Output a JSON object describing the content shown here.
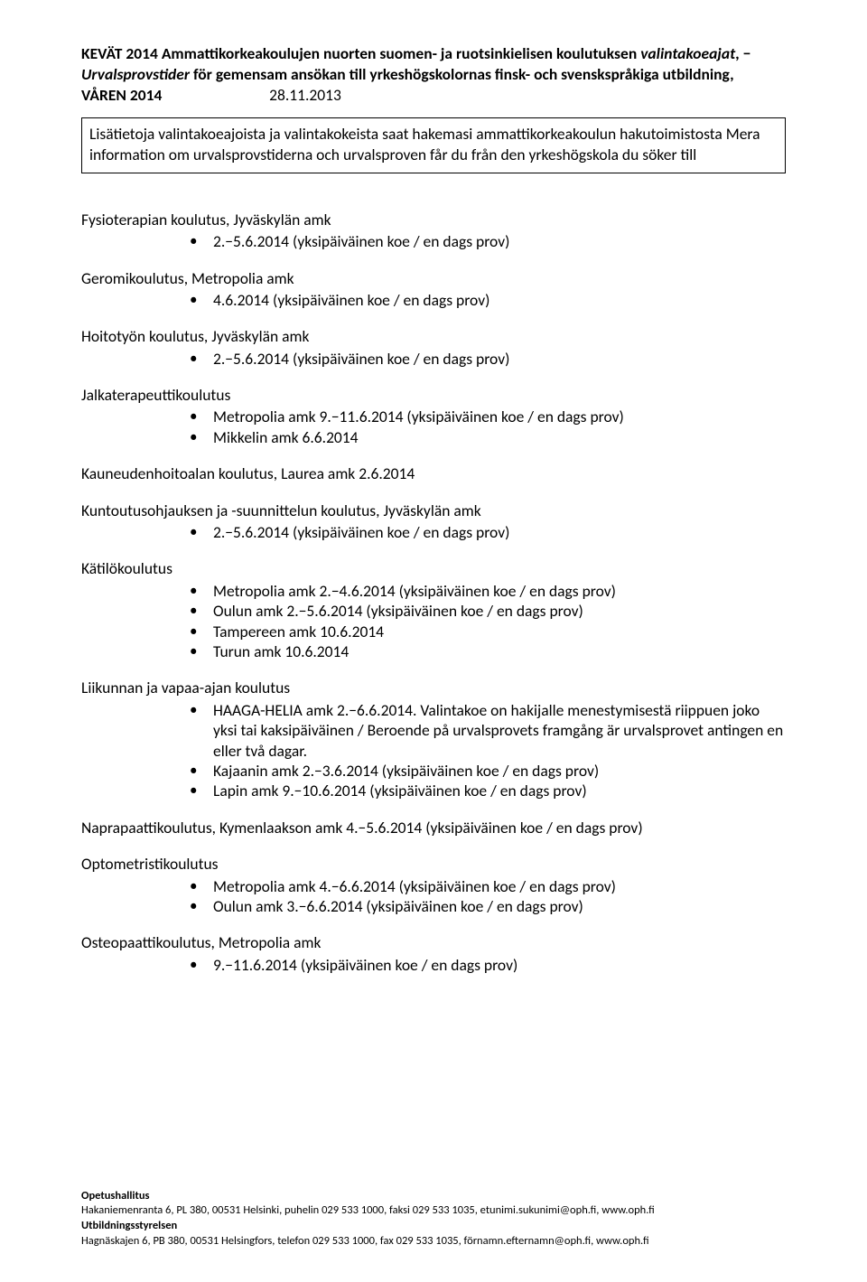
{
  "header": {
    "line1_pre": "KEVÄT 2014 Ammattikorkeakoulujen nuorten suomen- ja ruotsinkielisen koulutuksen ",
    "line1_bi": "valintakoeajat",
    "line1_post": ", −",
    "line2_bi1": "Urvalsprovstider",
    "line2_mid": " för gemensam ansökan till yrkeshögskolornas finsk- och svenskspråkiga utbildning, ",
    "line3_b": "VÅREN 2014",
    "line3_date": "28.11.2013"
  },
  "info_box": "Lisätietoja valintakoeajoista ja valintakokeista saat hakemasi ammattikorkeakoulun hakutoimistosta Mera information om urvalsprovstiderna och urvalsproven får du från den yrkeshögskola du söker till",
  "sections": [
    {
      "title": "Fysioterapian koulutus, Jyväskylän amk",
      "items": [
        "2.−5.6.2014 (yksipäiväinen koe / en dags prov)"
      ]
    },
    {
      "title": "Geromikoulutus, Metropolia amk",
      "items": [
        "4.6.2014 (yksipäiväinen koe / en dags prov)"
      ]
    },
    {
      "title": "Hoitotyön koulutus, Jyväskylän amk",
      "items": [
        "2.−5.6.2014 (yksipäiväinen koe / en dags prov)"
      ]
    },
    {
      "title": "Jalkaterapeuttikoulutus",
      "items": [
        "Metropolia amk 9.−11.6.2014 (yksipäiväinen koe / en dags prov)",
        "Mikkelin amk 6.6.2014"
      ]
    },
    {
      "oneliner": "Kauneudenhoitoalan koulutus, Laurea amk 2.6.2014"
    },
    {
      "title": "Kuntoutusohjauksen ja -suunnittelun koulutus, Jyväskylän amk",
      "items": [
        "2.−5.6.2014 (yksipäiväinen koe / en dags prov)"
      ]
    },
    {
      "title": "Kätilökoulutus",
      "items": [
        "Metropolia amk 2.−4.6.2014 (yksipäiväinen koe / en dags prov)",
        "Oulun amk 2.−5.6.2014 (yksipäiväinen koe / en dags prov)",
        "Tampereen amk 10.6.2014",
        "Turun amk 10.6.2014"
      ]
    },
    {
      "title": "Liikunnan ja vapaa-ajan koulutus",
      "items": [
        "HAAGA-HELIA amk 2.−6.6.2014. Valintakoe on hakijalle menestymisestä riippuen joko yksi tai kaksipäiväinen / Beroende på urvalsprovets framgång är urvalsprovet antingen en eller två dagar.",
        "Kajaanin amk 2.−3.6.2014 (yksipäiväinen koe / en dags prov)",
        "Lapin amk 9.−10.6.2014 (yksipäiväinen koe / en dags prov)"
      ]
    },
    {
      "oneliner": "Naprapaattikoulutus, Kymenlaakson amk 4.−5.6.2014 (yksipäiväinen koe / en dags prov)"
    },
    {
      "title": "Optometristikoulutus",
      "items": [
        "Metropolia amk 4.−6.6.2014 (yksipäiväinen koe / en dags prov)",
        "Oulun amk 3.−6.6.2014 (yksipäiväinen koe / en dags prov)"
      ]
    },
    {
      "title": "Osteopaattikoulutus, Metropolia amk",
      "items": [
        "9.−11.6.2014 (yksipäiväinen koe / en dags prov)"
      ]
    }
  ],
  "footer": {
    "org1": "Opetushallitus",
    "addr1": "Hakaniemenranta 6, PL 380, 00531 Helsinki, puhelin 029 533 1000, faksi 029 533 1035, etunimi.sukunimi@oph.fi, www.oph.fi",
    "org2": "Utbildningsstyrelsen",
    "addr2": "Hagnäskajen 6, PB 380, 00531 Helsingfors, telefon 029 533 1000, fax 029 533 1035, förnamn.efternamn@oph.fi, www.oph.fi"
  }
}
